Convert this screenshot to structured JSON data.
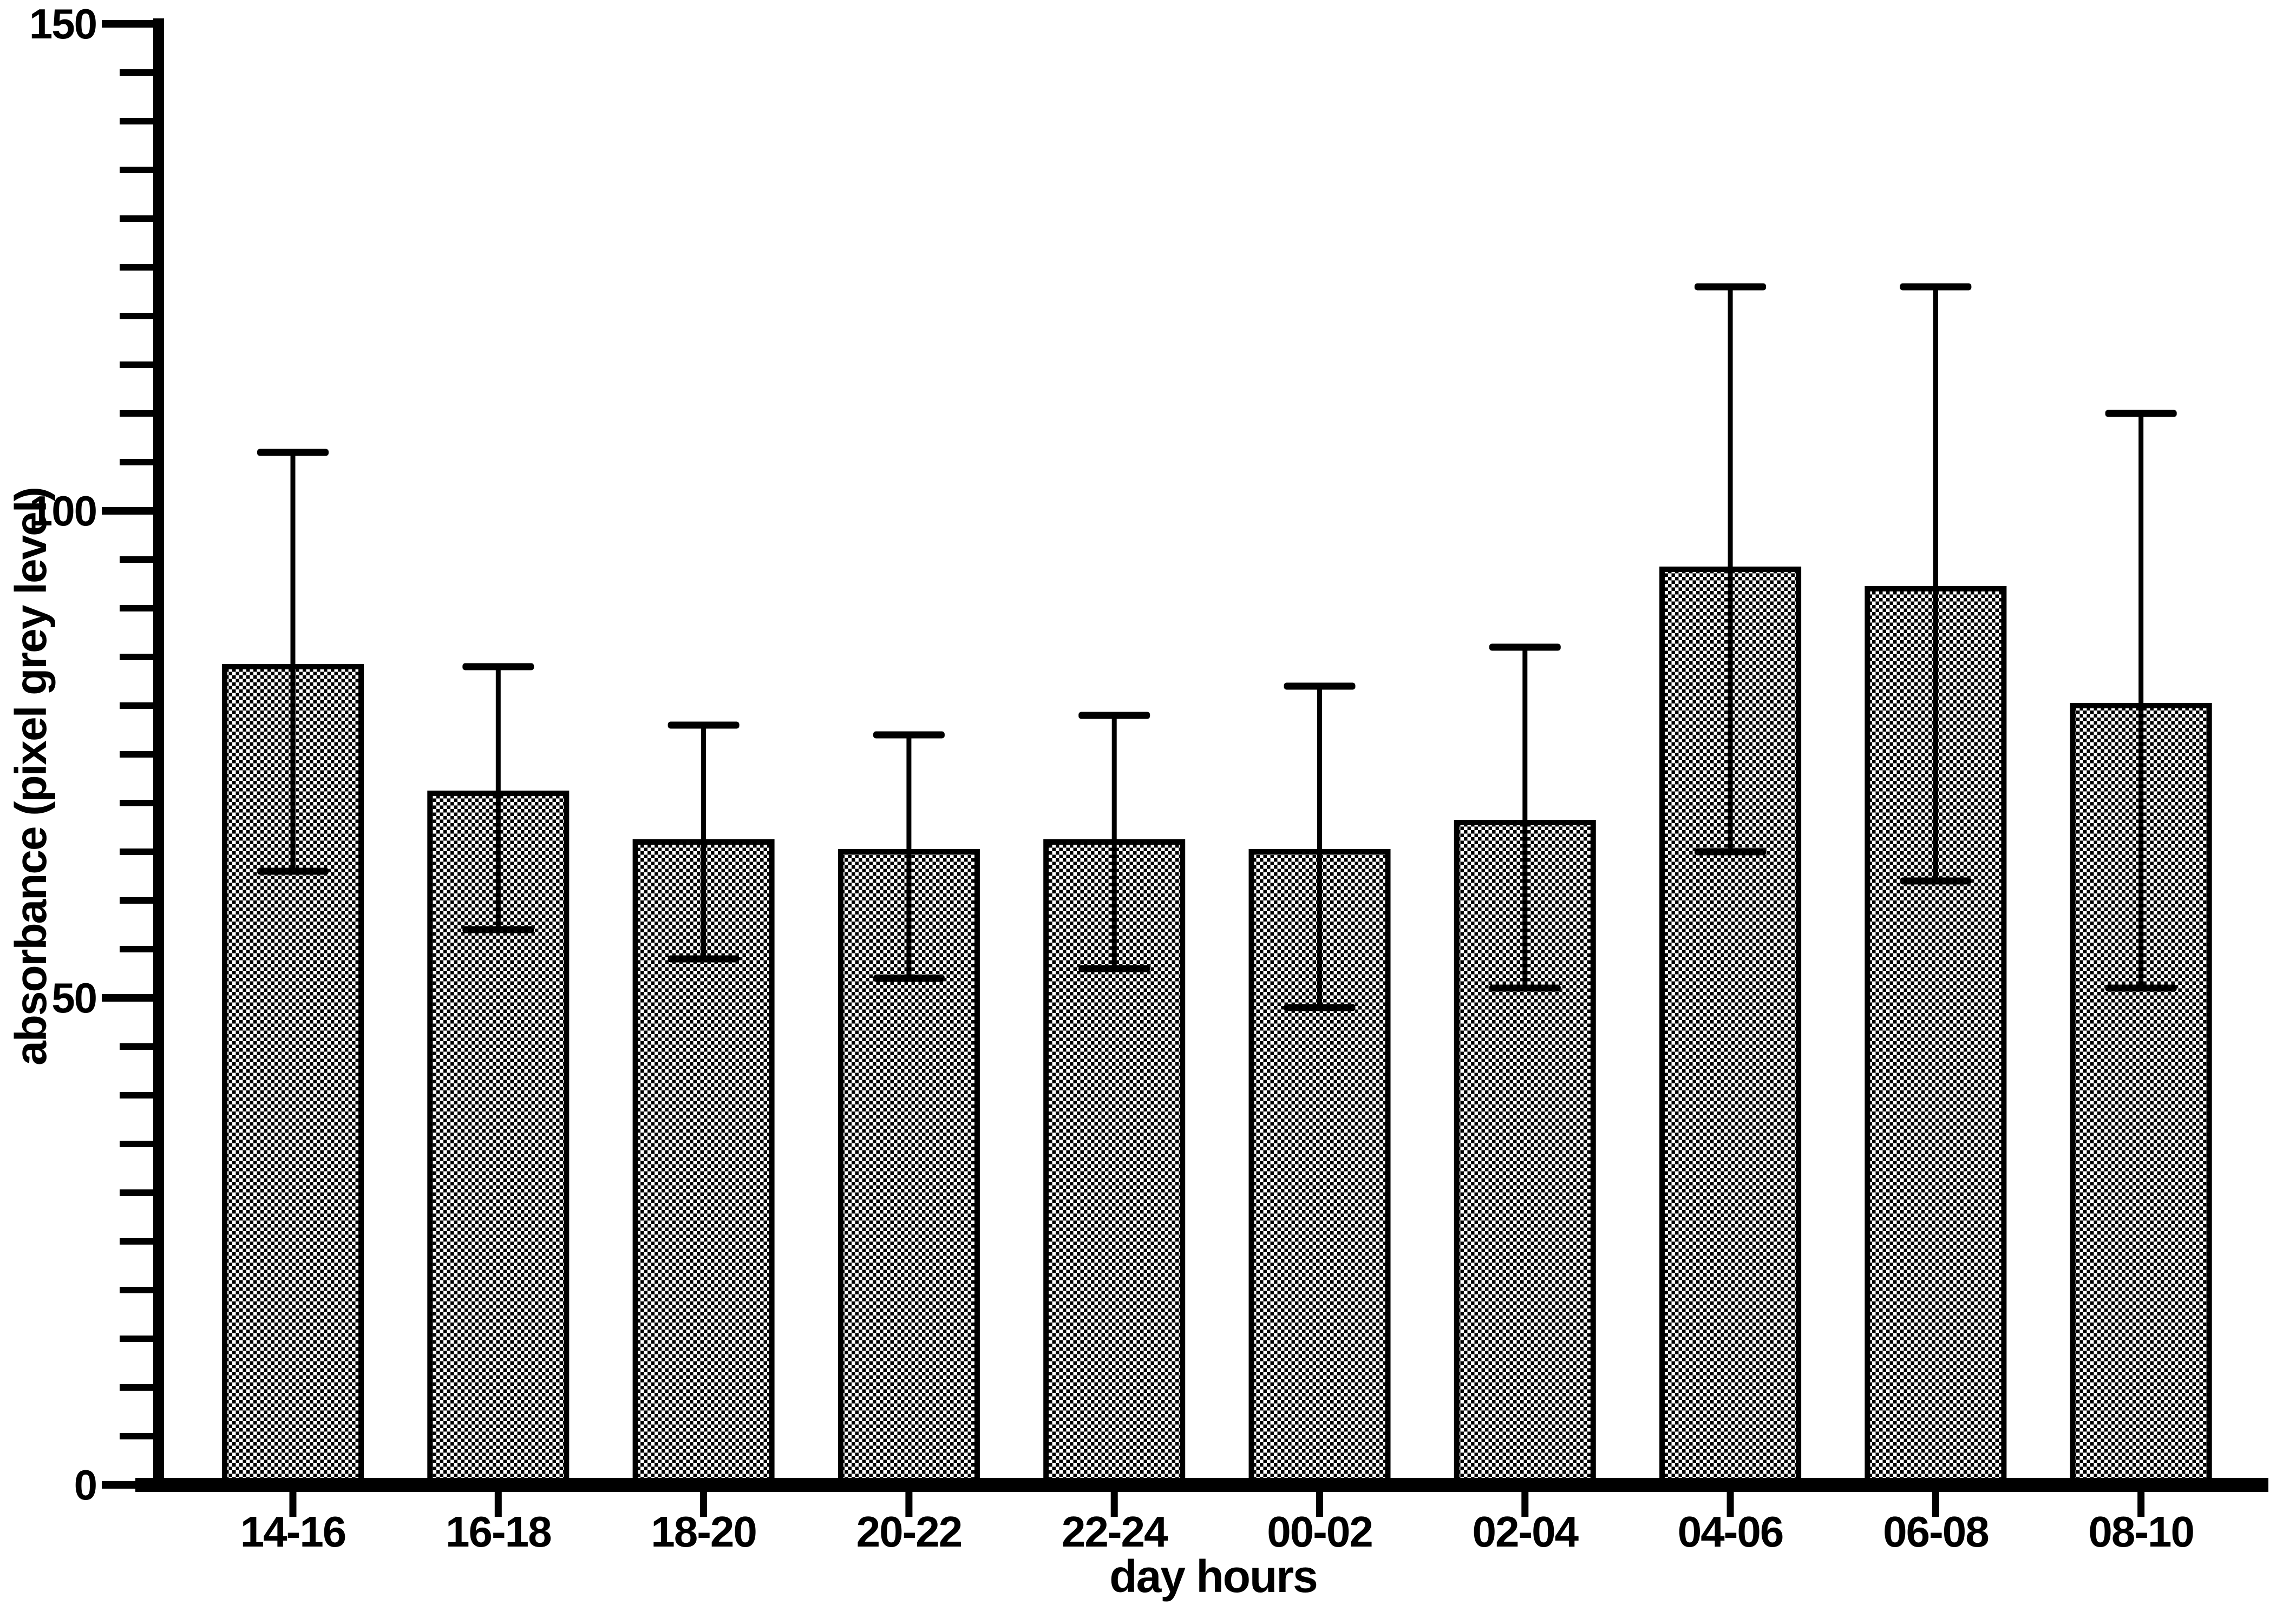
{
  "chart_data": {
    "type": "bar",
    "title": "",
    "xlabel": "day hours",
    "ylabel": "absorbance (pixel grey level)",
    "categories": [
      "14-16",
      "16-18",
      "18-20",
      "20-22",
      "22-24",
      "00-02",
      "02-04",
      "04-06",
      "06-08",
      "08-10"
    ],
    "series": [
      {
        "name": "absorbance mean",
        "values": [
          84,
          71,
          66,
          65,
          66,
          65,
          68,
          94,
          92,
          80
        ],
        "error_low": [
          63,
          57,
          54,
          52,
          53,
          49,
          51,
          65,
          62,
          51
        ],
        "error_high": [
          106,
          84,
          78,
          77,
          79,
          82,
          86,
          123,
          123,
          110
        ]
      }
    ],
    "ylim": [
      0,
      150
    ],
    "ytick_labels": [
      "0",
      "50",
      "100",
      "150"
    ],
    "ytick_label_values": [
      0,
      50,
      100,
      150
    ],
    "ytick_minor_step": 5,
    "grid": false,
    "legend": "none",
    "colors": {
      "foreground": "#000000",
      "background": "#ffffff"
    },
    "bar_fill": "black-white checkerboard pattern",
    "error_bars": "whiskers with caps above and below bar top"
  }
}
